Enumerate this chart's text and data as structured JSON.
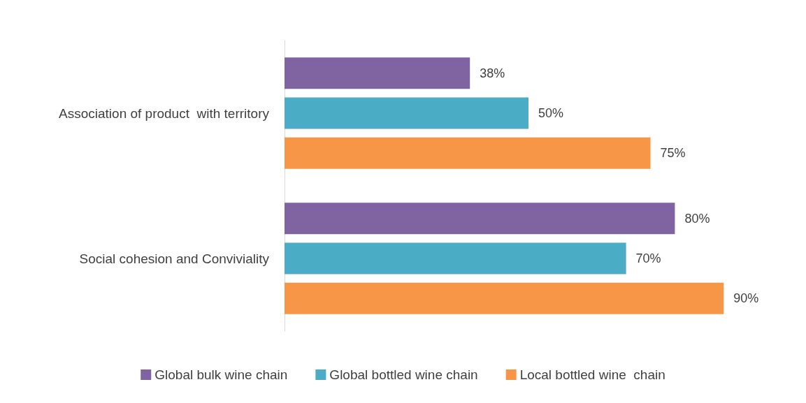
{
  "chart_data": {
    "type": "bar",
    "orientation": "horizontal",
    "categories": [
      "Association of product  with territory",
      "Social cohesion and Conviviality"
    ],
    "series": [
      {
        "name": "Global bulk wine chain",
        "color": "#8064a2",
        "values": [
          38,
          80
        ],
        "value_labels": [
          "38%",
          "80%"
        ]
      },
      {
        "name": "Global bottled wine chain",
        "color": "#4bacc6",
        "values": [
          50,
          70
        ],
        "value_labels": [
          "50%",
          "70%"
        ]
      },
      {
        "name": "Local bottled wine  chain",
        "color": "#f79646",
        "values": [
          75,
          90
        ],
        "value_labels": [
          "75%",
          "90%"
        ]
      }
    ],
    "legend": "bottom"
  }
}
